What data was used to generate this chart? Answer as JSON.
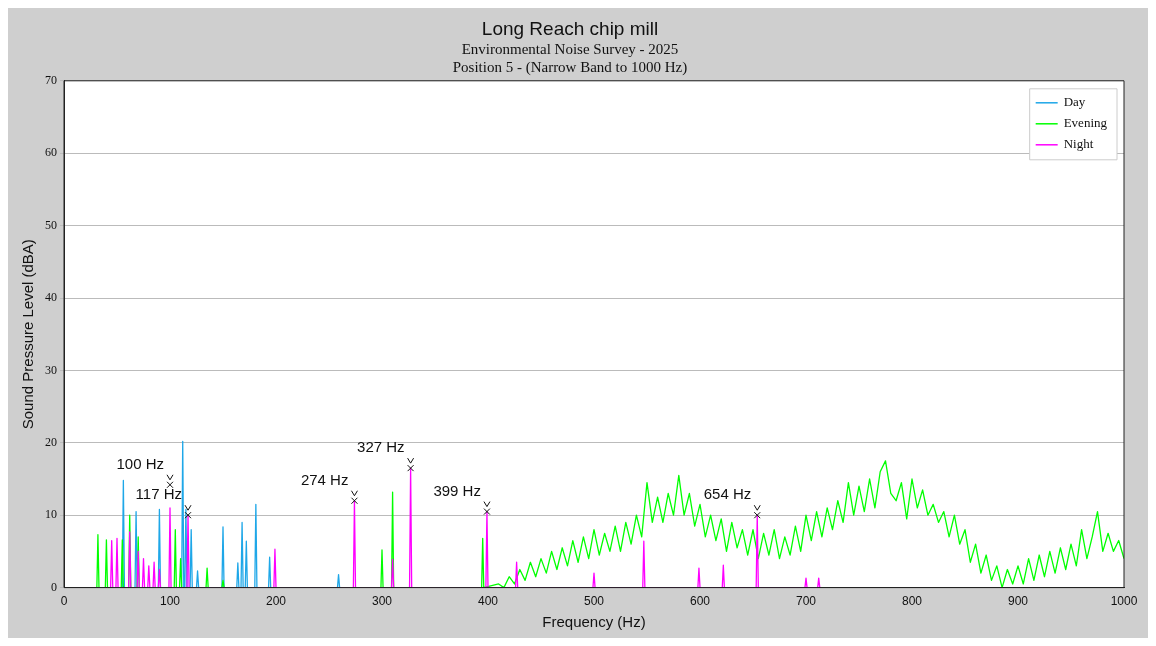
{
  "chart_data": {
    "type": "line",
    "title": "Long Reach chip mill",
    "subtitle": "Environmental Noise Survey - 2025\nPosition 5 - (Narrow Band to 1000 Hz)",
    "xlabel": "Frequency (Hz)",
    "ylabel": "Sound Pressure Level (dBA)",
    "xlim": [
      0,
      1000
    ],
    "xticks": [
      0,
      100,
      200,
      300,
      400,
      500,
      600,
      700,
      800,
      900,
      1000
    ],
    "ylim": [
      0,
      70
    ],
    "yticks": [
      0,
      10,
      20,
      30,
      40,
      50,
      60,
      70
    ],
    "grid": "y",
    "legend": "top right",
    "marker": "none",
    "line_style": "solid",
    "series": [
      {
        "name": "Day",
        "color": "#1ea7e8",
        "x": [
          55,
          56,
          57,
          67,
          68,
          69,
          89,
          90,
          91,
          111,
          112,
          113,
          114,
          115,
          116,
          119,
          120,
          121,
          125,
          126,
          127,
          149,
          150,
          151,
          163,
          164,
          165,
          167,
          168,
          169,
          171,
          172,
          173,
          180,
          181,
          182,
          193,
          194,
          195,
          258,
          259,
          260
        ],
        "values": [
          0,
          14.8,
          0,
          0,
          10.5,
          0,
          0,
          10.8,
          0,
          0,
          20.2,
          0,
          0,
          10.8,
          0,
          0,
          8,
          0,
          0,
          2.3,
          0,
          0,
          8.4,
          0,
          0,
          3.4,
          0,
          0,
          9,
          0,
          0,
          6.4,
          0,
          0,
          11.5,
          0,
          0,
          4.2,
          0,
          0,
          1.8,
          0
        ]
      },
      {
        "name": "Evening",
        "color": "#00ff00",
        "x": [
          31,
          32,
          33,
          39,
          40,
          41,
          54,
          55,
          56,
          61,
          62,
          63,
          69,
          70,
          71,
          104,
          105,
          106,
          109,
          110,
          111,
          134,
          135,
          136,
          149,
          150,
          151,
          299,
          300,
          301,
          309,
          310,
          311,
          394,
          395,
          396,
          410,
          415,
          420,
          425,
          430,
          435,
          440,
          445,
          450,
          455,
          460,
          465,
          470,
          475,
          480,
          485,
          490,
          495,
          500,
          505,
          510,
          515,
          520,
          525,
          530,
          535,
          540,
          545,
          550,
          555,
          560,
          565,
          570,
          575,
          580,
          585,
          590,
          595,
          600,
          605,
          610,
          615,
          620,
          625,
          630,
          635,
          640,
          645,
          650,
          655,
          660,
          665,
          670,
          675,
          680,
          685,
          690,
          695,
          700,
          705,
          710,
          715,
          720,
          725,
          730,
          735,
          740,
          745,
          750,
          755,
          760,
          765,
          770,
          775,
          780,
          785,
          790,
          795,
          800,
          805,
          810,
          815,
          820,
          825,
          830,
          835,
          840,
          845,
          850,
          855,
          860,
          865,
          870,
          875,
          880,
          885,
          890,
          895,
          900,
          905,
          910,
          915,
          920,
          925,
          930,
          935,
          940,
          945,
          950,
          955,
          960,
          965,
          970,
          975,
          980,
          985,
          990,
          995,
          1000
        ],
        "values": [
          0,
          7.3,
          0,
          0,
          6.6,
          0,
          0,
          6.6,
          0,
          0,
          10,
          0,
          0,
          7,
          0,
          0,
          8,
          0,
          0,
          4,
          0,
          0,
          2.7,
          0,
          0,
          1,
          0,
          0,
          5.2,
          0,
          0,
          13.2,
          0,
          0,
          6.8,
          0,
          0.5,
          0,
          1.5,
          0.5,
          2.5,
          1,
          3.5,
          1.5,
          4,
          2,
          5,
          2.5,
          5.5,
          3,
          6.5,
          3.5,
          7,
          4,
          8,
          4.5,
          7.5,
          5,
          8.5,
          5,
          9,
          6,
          10,
          7,
          14.5,
          9,
          12.5,
          9,
          13,
          10,
          15.5,
          10,
          13,
          8.5,
          11.5,
          7,
          10,
          6.5,
          9.5,
          5,
          9,
          5.5,
          8,
          4.5,
          8,
          4,
          7.5,
          4.5,
          8,
          4,
          7,
          4.5,
          8.5,
          5,
          10,
          6.5,
          10.5,
          7,
          11,
          8,
          12,
          9,
          14.5,
          10,
          14,
          10.5,
          15,
          11,
          16,
          17.5,
          13,
          12,
          14.5,
          9.5,
          15,
          11,
          13.5,
          10,
          11.5,
          9,
          10.5,
          7,
          10,
          6,
          8,
          3.5,
          6,
          2,
          4.5,
          1,
          3,
          0,
          2.5,
          0.5,
          3,
          0.5,
          4,
          1,
          4.5,
          1.5,
          5,
          2,
          5.5,
          2.5,
          6,
          3,
          8,
          4,
          7,
          10.5,
          5,
          7.5,
          5,
          6.5,
          4
        ]
      },
      {
        "name": "Night",
        "color": "#ff00ff",
        "x": [
          44,
          45,
          46,
          49,
          50,
          51,
          61,
          62,
          63,
          69,
          70,
          71,
          74,
          75,
          76,
          79,
          80,
          81,
          84,
          85,
          86,
          89,
          90,
          91,
          99,
          100,
          101,
          116,
          117,
          118,
          198,
          199,
          200,
          273,
          274,
          275,
          309,
          310,
          311,
          326,
          327,
          328,
          398,
          399,
          400,
          426,
          427,
          428,
          499,
          500,
          501,
          546,
          547,
          548,
          598,
          599,
          600,
          621,
          622,
          623,
          653,
          654,
          655,
          699,
          700,
          701,
          711,
          712,
          713
        ],
        "values": [
          0,
          6.5,
          0,
          0,
          6.8,
          0,
          0,
          7.7,
          0,
          0,
          5,
          0,
          0,
          4,
          0,
          0,
          3,
          0,
          0,
          3.5,
          0,
          0,
          2.5,
          0,
          0,
          11,
          0,
          0,
          10,
          0,
          0,
          5.3,
          0,
          0,
          12,
          0,
          0,
          3.9,
          0,
          0,
          16.5,
          0,
          0,
          10.5,
          0,
          0,
          3.5,
          0,
          0,
          2,
          0,
          0,
          6.4,
          0,
          0,
          2.7,
          0,
          0,
          3.1,
          0,
          0,
          10,
          0,
          0,
          1.3,
          0,
          0,
          1.3,
          0
        ]
      }
    ],
    "annotations": [
      {
        "text": "100 Hz",
        "x": 100,
        "y": 14.2
      },
      {
        "text": "117 Hz",
        "x": 117,
        "y": 10
      },
      {
        "text": "274 Hz",
        "x": 274,
        "y": 12
      },
      {
        "text": "327 Hz",
        "x": 327,
        "y": 16.5
      },
      {
        "text": "399 Hz",
        "x": 399,
        "y": 10.5
      },
      {
        "text": "654 Hz",
        "x": 654,
        "y": 10
      }
    ]
  }
}
